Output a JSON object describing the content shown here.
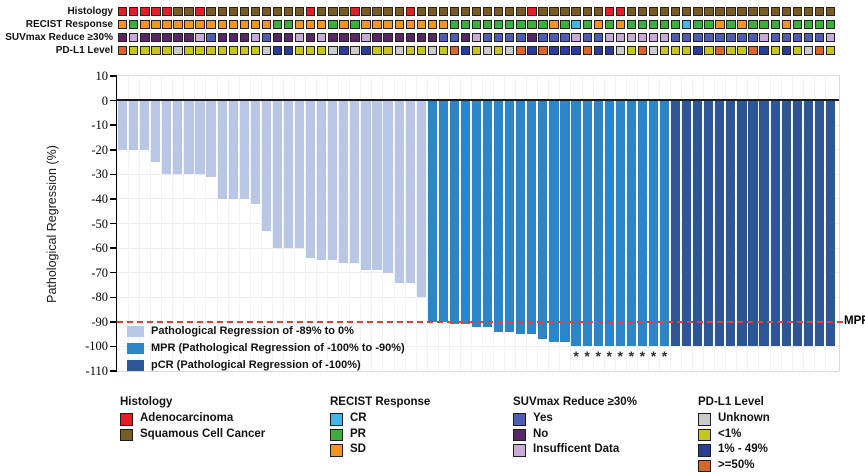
{
  "tracks": {
    "labels": [
      "Histology",
      "RECIST Response",
      "SUVmax Reduce ≥30%",
      "PD-L1 Level"
    ],
    "histology": [
      "A",
      "A",
      "A",
      "A",
      "A",
      "S",
      "S",
      "A",
      "S",
      "S",
      "S",
      "S",
      "S",
      "S",
      "S",
      "S",
      "S",
      "A",
      "S",
      "S",
      "S",
      "A",
      "S",
      "S",
      "S",
      "S",
      "A",
      "S",
      "S",
      "S",
      "S",
      "S",
      "S",
      "S",
      "S",
      "S",
      "S",
      "A",
      "S",
      "S",
      "S",
      "S",
      "S",
      "S",
      "A",
      "A",
      "S",
      "S",
      "S",
      "S",
      "S",
      "S",
      "S",
      "S",
      "S",
      "S",
      "S",
      "S",
      "S",
      "S",
      "S",
      "S",
      "S",
      "S",
      "S"
    ],
    "recist": [
      "SD",
      "PR",
      "SD",
      "SD",
      "SD",
      "SD",
      "SD",
      "SD",
      "SD",
      "SD",
      "SD",
      "SD",
      "SD",
      "SD",
      "PR",
      "PR",
      "SD",
      "SD",
      "SD",
      "PR",
      "SD",
      "PR",
      "SD",
      "SD",
      "SD",
      "SD",
      "SD",
      "SD",
      "SD",
      "SD",
      "PR",
      "PR",
      "PR",
      "PR",
      "PR",
      "PR",
      "PR",
      "PR",
      "PR",
      "SD",
      "PR",
      "CR",
      "PR",
      "SD",
      "PR",
      "SD",
      "PR",
      "PR",
      "PR",
      "PR",
      "PR",
      "CR",
      "PR",
      "PR",
      "SD",
      "PR",
      "SD",
      "PR",
      "PR",
      "PR",
      "SD",
      "PR",
      "PR",
      "PR",
      "PR"
    ],
    "suvmax": [
      "N",
      "I",
      "N",
      "N",
      "N",
      "N",
      "N",
      "I",
      "Y",
      "N",
      "N",
      "N",
      "I",
      "Y",
      "N",
      "N",
      "I",
      "N",
      "I",
      "N",
      "N",
      "N",
      "I",
      "N",
      "N",
      "N",
      "N",
      "N",
      "N",
      "Y",
      "Y",
      "N",
      "I",
      "Y",
      "Y",
      "Y",
      "Y",
      "N",
      "Y",
      "Y",
      "Y",
      "I",
      "Y",
      "Y",
      "I",
      "I",
      "I",
      "I",
      "I",
      "I",
      "Y",
      "Y",
      "Y",
      "Y",
      "Y",
      "Y",
      "Y",
      "Y",
      "I",
      "Y",
      "Y",
      "Y",
      "Y",
      "Y",
      "I"
    ],
    "pdl1": [
      "H",
      "L",
      "L",
      "L",
      "L",
      "U",
      "L",
      "L",
      "L",
      "L",
      "L",
      "L",
      "L",
      "U",
      "M",
      "M",
      "L",
      "L",
      "L",
      "U",
      "M",
      "U",
      "M",
      "L",
      "L",
      "U",
      "L",
      "L",
      "U",
      "L",
      "H",
      "M",
      "L",
      "U",
      "L",
      "U",
      "H",
      "M",
      "H",
      "M",
      "M",
      "M",
      "H",
      "M",
      "M",
      "U",
      "L",
      "H",
      "U",
      "L",
      "L",
      "L",
      "M",
      "L",
      "H",
      "L",
      "L",
      "H",
      "M",
      "L",
      "M",
      "L",
      "U",
      "H",
      "L"
    ]
  },
  "track_code_colors": {
    "A": "#e41e26",
    "S": "#7a5b23",
    "SD": "#f7941d",
    "PR": "#3cae3c",
    "CR": "#3fb8e8",
    "Y": "#4d5cb5",
    "N": "#5a2668",
    "I": "#c9abd9",
    "U": "#cbcbcb",
    "L": "#c6c61d",
    "M": "#2c3d98",
    "H": "#d8672b"
  },
  "chart_data": {
    "type": "bar",
    "title": "",
    "xlabel": "",
    "ylabel": "Pathological Regression (%)",
    "ylim": [
      -110,
      10
    ],
    "yticks": [
      10,
      0,
      -10,
      -20,
      -30,
      -40,
      -50,
      -60,
      -70,
      -80,
      -90,
      -100,
      -110
    ],
    "n_patients": 65,
    "values": [
      -20,
      -20,
      -20,
      -25,
      -30,
      -30,
      -30,
      -30,
      -31,
      -40,
      -40,
      -40,
      -42,
      -53,
      -60,
      -60,
      -60,
      -64,
      -65,
      -65,
      -66,
      -66,
      -69,
      -69,
      -70,
      -74,
      -74,
      -80,
      -90,
      -90,
      -91,
      -91,
      -92,
      -92,
      -94,
      -94,
      -95,
      -95,
      -97,
      -98,
      -98,
      -100,
      -100,
      -100,
      -100,
      -100,
      -100,
      -100,
      -100,
      -100,
      -100,
      -100,
      -100,
      -100,
      -100,
      -100,
      -100,
      -100,
      -100,
      -100,
      -100,
      -100,
      -100,
      -100,
      -100
    ],
    "group_ranges": {
      "light": [
        1,
        28
      ],
      "mpr": [
        29,
        50
      ],
      "pcr": [
        51,
        65
      ]
    },
    "group_colors": {
      "light": "#b8c7e6",
      "mpr": "#2c85c7",
      "pcr": "#2e5694"
    },
    "asterisk_bars": [
      42,
      43,
      44,
      45,
      46,
      47,
      48,
      49,
      50
    ],
    "asterisk_glyph": "*",
    "reference_line": {
      "y": -90,
      "label": "MPR",
      "color": "#f03c32",
      "style": "dashed"
    },
    "grid": true,
    "legend_position": "inside-bottom-left"
  },
  "chart_legend": [
    {
      "label": "Pathological Regression of -89% to 0%",
      "color": "#b8c7e6"
    },
    {
      "label": "MPR (Pathological Regression of -100% to -90%)",
      "color": "#2c85c7"
    },
    {
      "label": "pCR (Pathological Regression of -100%)",
      "color": "#2e5694"
    }
  ],
  "bottom_legend": [
    {
      "title": "Histology",
      "items": [
        {
          "label": "Adenocarcinoma",
          "color": "#e41e26"
        },
        {
          "label": "Squamous Cell Cancer",
          "color": "#7a5b23"
        }
      ]
    },
    {
      "title": "RECIST Response",
      "items": [
        {
          "label": "CR",
          "color": "#3fb8e8"
        },
        {
          "label": "PR",
          "color": "#3cae3c"
        },
        {
          "label": "SD",
          "color": "#f7941d"
        }
      ]
    },
    {
      "title": "SUVmax Reduce ≥30%",
      "items": [
        {
          "label": "Yes",
          "color": "#4d5cb5"
        },
        {
          "label": "No",
          "color": "#5a2668"
        },
        {
          "label": "Insufficent Data",
          "color": "#c9abd9"
        }
      ]
    },
    {
      "title": "PD-L1 Level",
      "items": [
        {
          "label": "Unknown",
          "color": "#cbcbcb"
        },
        {
          "label": "<1%",
          "color": "#c6c61d"
        },
        {
          "label": "1% - 49%",
          "color": "#2c3d98"
        },
        {
          "label": ">=50%",
          "color": "#d8672b"
        }
      ]
    }
  ]
}
